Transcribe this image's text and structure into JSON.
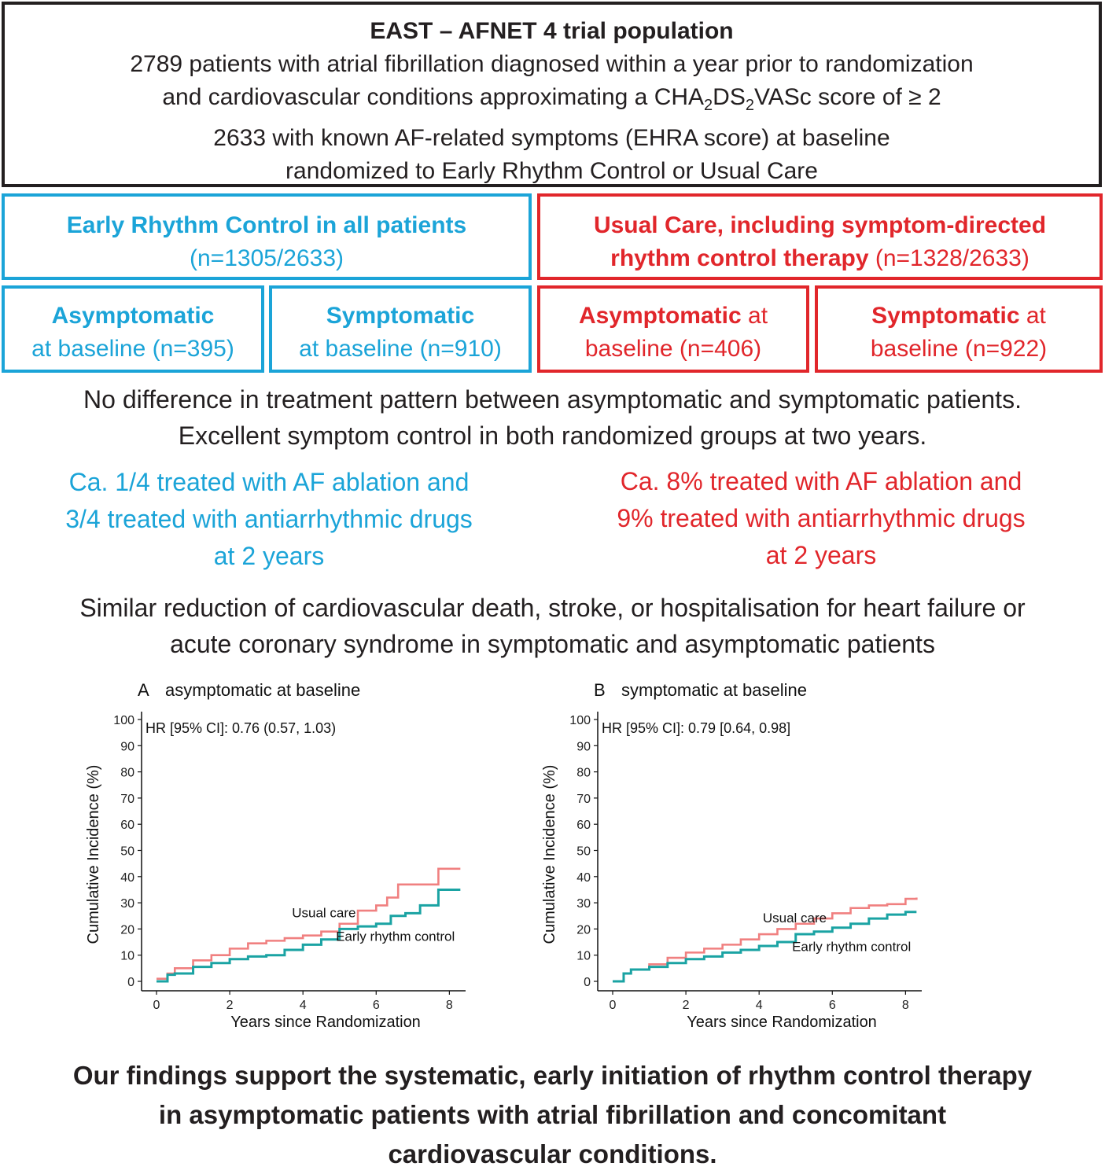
{
  "trial": {
    "title": "EAST – AFNET 4 trial population",
    "line1": "2789 patients with atrial fibrillation diagnosed within a year prior to randomization",
    "line2_pre": "and cardiovascular conditions approximating a CHA",
    "line2_sub1": "2",
    "line2_mid": "DS",
    "line2_sub2": "2",
    "line2_post": "VASc score of ≥ 2",
    "line3": "2633 with known AF-related symptoms (EHRA score) at baseline",
    "line4": "randomized to Early Rhythm Control or Usual Care"
  },
  "arms": {
    "early": {
      "title": "Early Rhythm Control in all patients",
      "count": "(n=1305/2633)"
    },
    "usual": {
      "title1": "Usual Care, including symptom-directed",
      "title2": "rhythm control therapy",
      "count": " (n=1328/2633)"
    }
  },
  "subgroups": {
    "early_asym": {
      "bold": "Asymptomatic",
      "text": "at baseline (n=395)"
    },
    "early_sym": {
      "bold": "Symptomatic",
      "text": "at baseline (n=910)"
    },
    "usual_asym": {
      "bold": "Asymptomatic",
      "text1": " at",
      "text2": "baseline (n=406)"
    },
    "usual_sym": {
      "bold": "Symptomatic",
      "text1": " at",
      "text2": "baseline (n=922)"
    }
  },
  "findings": {
    "line1": "No difference in treatment pattern between asymptomatic and symptomatic patients.",
    "line2": "Excellent symptom control in both randomized groups at two years."
  },
  "treatment": {
    "early": [
      "Ca. 1/4  treated with AF ablation and",
      "3/4  treated with antiarrhythmic drugs",
      "at 2 years"
    ],
    "usual": [
      "Ca. 8% treated with AF ablation and",
      "9% treated with antiarrhythmic drugs",
      "at 2 years"
    ]
  },
  "outcome": {
    "line1": "Similar reduction of cardiovascular death, stroke, or hospitalisation for heart failure or",
    "line2": "acute coronary syndrome in symptomatic and asymptomatic patients"
  },
  "colors": {
    "early": "#1ba4d8",
    "usual": "#e1262b",
    "curve_usual": "#f08080",
    "curve_early": "#1aa3a3"
  },
  "chart_data": [
    {
      "type": "line",
      "panel": "A",
      "title": "asymptomatic at baseline",
      "annotation": "HR [95% CI]:  0.76 (0.57, 1.03)",
      "xlabel": "Years since Randomization",
      "ylabel": "Cumulative Incidence (%)",
      "xlim": [
        0,
        8.4
      ],
      "ylim": [
        0,
        100
      ],
      "xticks": [
        "0",
        "2",
        "4",
        "6",
        "8"
      ],
      "yticks": [
        "0",
        "10",
        "20",
        "30",
        "40",
        "50",
        "60",
        "70",
        "80",
        "90",
        "100"
      ],
      "series": [
        {
          "name": "Usual care",
          "color": "#f08080",
          "x": [
            0,
            0.3,
            0.5,
            1,
            1.5,
            2,
            2.5,
            3,
            3.5,
            4,
            4.5,
            5,
            5.5,
            6,
            6.3,
            6.6,
            6.9,
            7.3,
            7.6,
            7.7,
            8.3
          ],
          "y": [
            1,
            3,
            5,
            8,
            10,
            12.5,
            14.5,
            15.5,
            16.5,
            17.5,
            19,
            22,
            27,
            29,
            32,
            37,
            37,
            37,
            37,
            43,
            43
          ]
        },
        {
          "name": "Early rhythm control",
          "color": "#1aa3a3",
          "x": [
            0,
            0.3,
            0.5,
            1,
            1.5,
            2,
            2.5,
            3,
            3.5,
            4,
            4.5,
            5,
            5.5,
            6,
            6.4,
            6.8,
            7.2,
            7.6,
            7.7,
            8.3
          ],
          "y": [
            0,
            2.5,
            3,
            5.5,
            7,
            8.5,
            9.5,
            10,
            12,
            14,
            16,
            20,
            21,
            22,
            25,
            26,
            29,
            29,
            35,
            35
          ]
        }
      ],
      "series_labels": [
        "Usual care",
        "Early rhythm control"
      ]
    },
    {
      "type": "line",
      "panel": "B",
      "title": "symptomatic at baseline",
      "annotation": "HR [95% CI]:  0.79 [0.64, 0.98]",
      "xlabel": "Years since Randomization",
      "ylabel": "Cumulative Incidence (%)",
      "xlim": [
        0,
        8.4
      ],
      "ylim": [
        0,
        100
      ],
      "xticks": [
        "0",
        "2",
        "4",
        "6",
        "8"
      ],
      "yticks": [
        "0",
        "10",
        "20",
        "30",
        "40",
        "50",
        "60",
        "70",
        "80",
        "90",
        "100"
      ],
      "series": [
        {
          "name": "Usual care",
          "color": "#f08080",
          "x": [
            0,
            0.3,
            0.5,
            1,
            1.5,
            2,
            2.5,
            3,
            3.5,
            4,
            4.5,
            5,
            5.5,
            6,
            6.5,
            7,
            7.5,
            8,
            8.3
          ],
          "y": [
            0,
            3,
            4.5,
            6.5,
            9,
            11,
            12.5,
            14,
            16,
            18,
            20,
            22,
            24,
            26,
            28,
            29,
            29.5,
            31.5,
            32
          ]
        },
        {
          "name": "Early rhythm control",
          "color": "#1aa3a3",
          "x": [
            0,
            0.3,
            0.5,
            1,
            1.5,
            2,
            2.5,
            3,
            3.5,
            4,
            4.5,
            5,
            5.5,
            6,
            6.5,
            7,
            7.5,
            8,
            8.3
          ],
          "y": [
            0,
            3,
            4.5,
            5.5,
            7,
            8.5,
            9.5,
            11,
            12,
            13.5,
            15,
            18,
            19,
            20.5,
            22,
            24,
            25.5,
            26.5,
            26.5
          ]
        }
      ],
      "series_labels": [
        "Usual care",
        "Early rhythm control"
      ]
    }
  ],
  "conclusion": {
    "line1": "Our findings support the systematic, early initiation of rhythm control therapy",
    "line2": "in asymptomatic patients with atrial fibrillation and concomitant",
    "line3": "cardiovascular conditions."
  }
}
